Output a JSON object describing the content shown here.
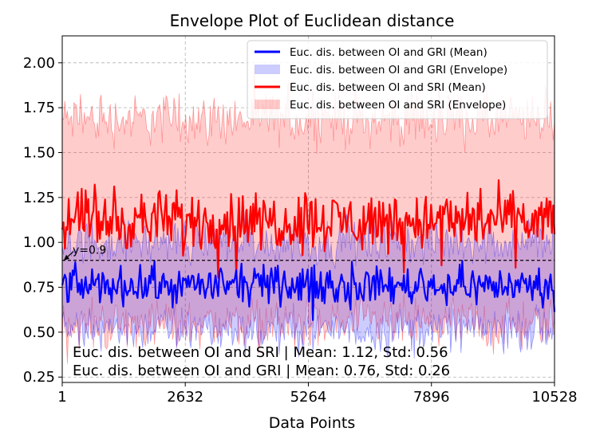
{
  "chart_data": {
    "type": "line",
    "title": "Envelope Plot of Euclidean distance",
    "xlabel": "Data Points",
    "ylabel": "",
    "xlim": [
      1,
      10528
    ],
    "ylim": [
      0.22,
      2.15
    ],
    "xticks": [
      1,
      2632,
      5264,
      7896,
      10528
    ],
    "xtick_labels": [
      "1",
      "2632",
      "5264",
      "7896",
      "10528"
    ],
    "yticks": [
      0.25,
      0.5,
      0.75,
      1.0,
      1.25,
      1.5,
      1.75,
      2.0
    ],
    "ytick_labels": [
      "0.25",
      "0.50",
      "0.75",
      "1.00",
      "1.25",
      "1.50",
      "1.75",
      "2.00"
    ],
    "grid": true,
    "legend_position": "top-right",
    "series": [
      {
        "name": "Euc. dis. between OI and GRI (Mean)",
        "kind": "line",
        "color": "#0000ff",
        "mean": 0.76,
        "std": 0.26,
        "spread": 0.05
      },
      {
        "name": "Euc. dis. between OI and GRI (Envelope)",
        "kind": "envelope",
        "color": "#0000ff",
        "lower_center": 0.52,
        "upper_center": 1.0,
        "jitter": 0.06
      },
      {
        "name": "Euc. dis. between OI and SRI (Mean)",
        "kind": "line",
        "color": "#ff0000",
        "mean": 1.12,
        "std": 0.56,
        "spread": 0.08
      },
      {
        "name": "Euc. dis. between OI and SRI (Envelope)",
        "kind": "envelope",
        "color": "#ff0000",
        "lower_center": 0.55,
        "upper_center": 1.68,
        "jitter": 0.07
      }
    ],
    "reference_line": {
      "y": 0.9,
      "label": "y=0.9"
    },
    "annotations": [
      "Euc. dis. between OI and SRI | Mean: 1.12, Std: 0.56",
      "Euc. dis. between OI and GRI | Mean: 0.76, Std: 0.26"
    ]
  }
}
